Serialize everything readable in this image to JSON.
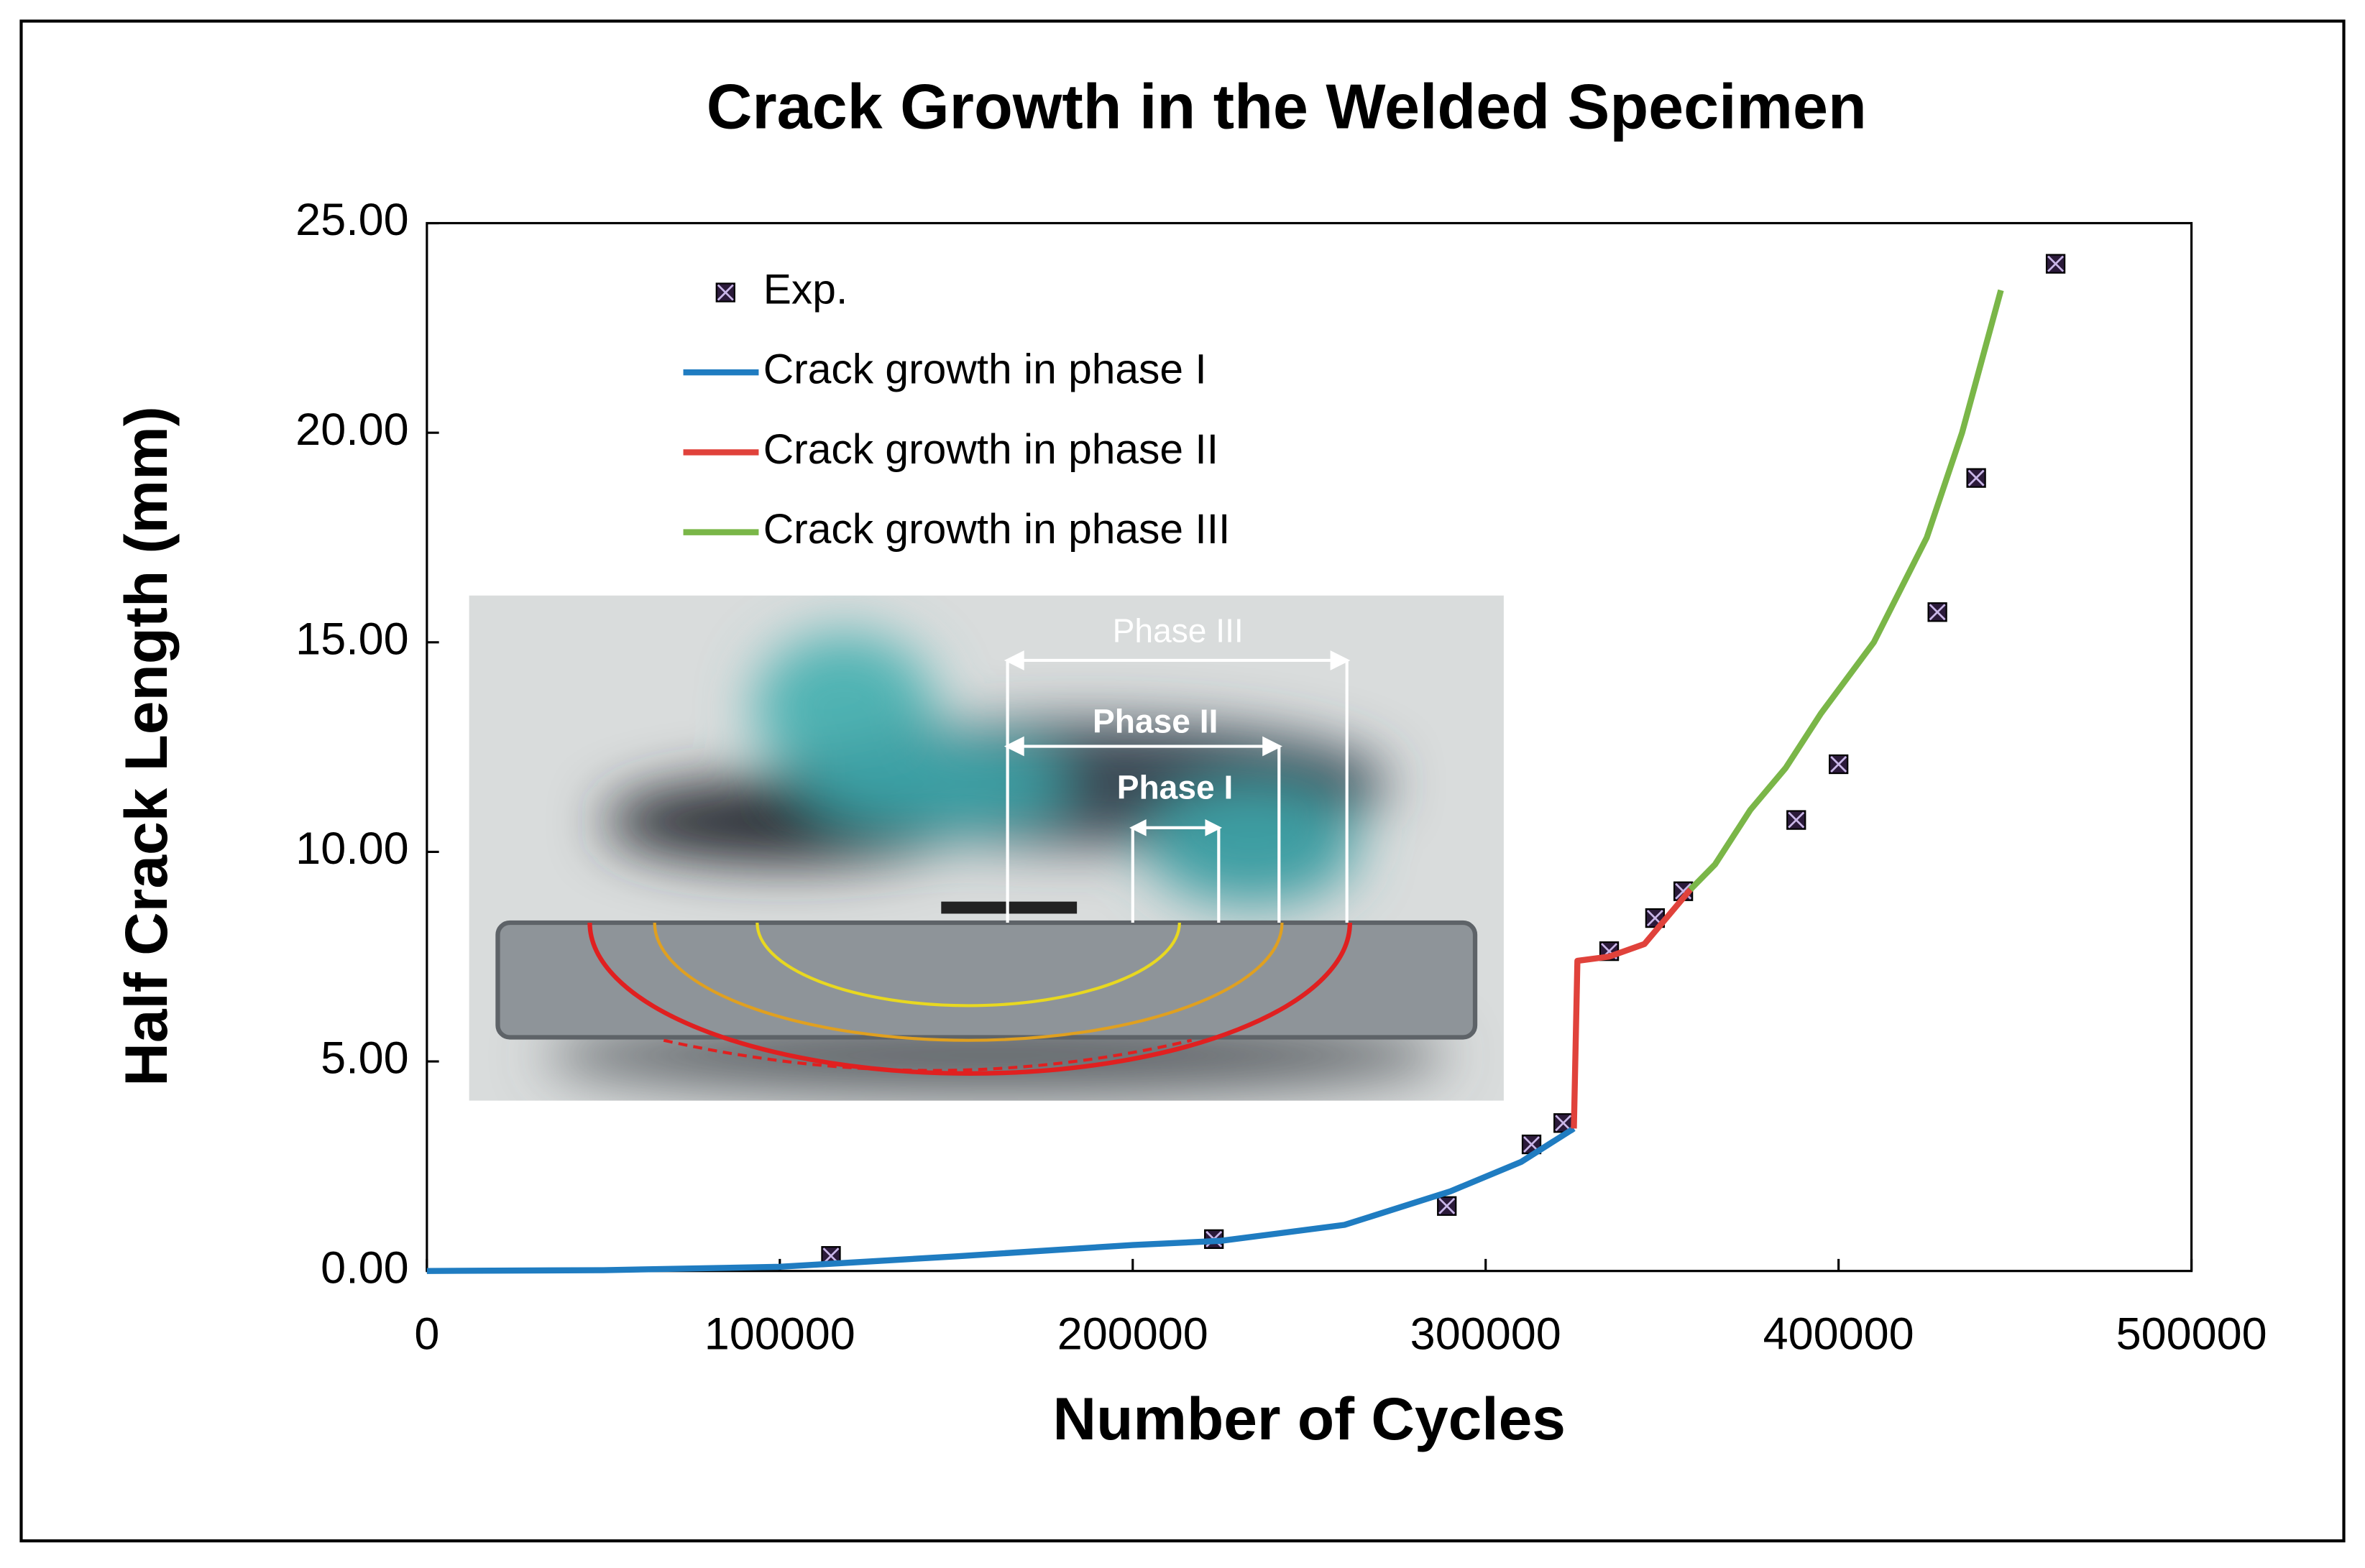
{
  "chart_data": {
    "type": "line",
    "title": "Crack Growth in the Welded Specimen",
    "x_label": "Number of Cycles",
    "y_label": "Half Crack Length (mm)",
    "xlim": [
      0,
      500000
    ],
    "xticks": [
      0,
      100000,
      200000,
      300000,
      400000,
      500000
    ],
    "ylim": [
      0,
      25
    ],
    "yticks": [
      {
        "value": 0,
        "label": "0.00"
      },
      {
        "value": 5,
        "label": "5.00"
      },
      {
        "value": 10,
        "label": "10.00"
      },
      {
        "value": 15,
        "label": "15.00"
      },
      {
        "value": 20,
        "label": "20.00"
      },
      {
        "value": 25,
        "label": "25.00"
      }
    ],
    "grid": false,
    "legend": "upper left",
    "series": [
      {
        "name": "Exp.",
        "style": "markers",
        "color": "#2b1a3a",
        "x": [
          114500,
          223000,
          289000,
          313000,
          322000,
          335000,
          348000,
          356000,
          388000,
          400000,
          428000,
          439000,
          461500
        ],
        "values": [
          0.36,
          0.76,
          1.55,
          3.02,
          3.53,
          7.63,
          8.42,
          9.06,
          10.76,
          12.09,
          15.72,
          18.92,
          24.03
        ]
      },
      {
        "name": "Crack growth in phase I",
        "style": "line",
        "color": "#1f7cc1",
        "x": [
          0,
          50000,
          100000,
          150000,
          200000,
          225000,
          260000,
          290000,
          310000,
          325000
        ],
        "values": [
          0,
          0.02,
          0.1,
          0.35,
          0.62,
          0.72,
          1.1,
          1.9,
          2.6,
          3.4
        ]
      },
      {
        "name": "Crack growth in phase II",
        "style": "line",
        "color": "#e0423b",
        "x": [
          325000,
          326000,
          335000,
          345000,
          352000,
          358000
        ],
        "values": [
          3.4,
          7.4,
          7.5,
          7.8,
          8.5,
          9.1
        ]
      },
      {
        "name": "Crack growth in phase III",
        "style": "line",
        "color": "#7ab648",
        "x": [
          358000,
          365000,
          375000,
          385000,
          395000,
          410000,
          425000,
          435000,
          446000
        ],
        "values": [
          9.1,
          9.7,
          11.0,
          12.0,
          13.3,
          15.0,
          17.5,
          20.0,
          23.4
        ]
      }
    ],
    "annotations": [
      "Phase III",
      "Phase II",
      "Phase I"
    ]
  }
}
